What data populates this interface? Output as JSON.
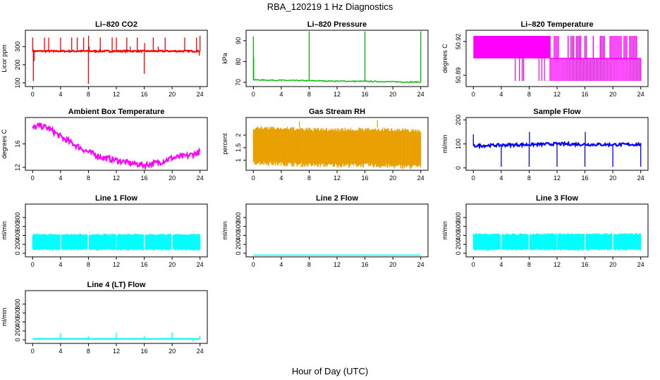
{
  "figure": {
    "title": "RBA_120219  1 Hz Diagnostics",
    "xlabel": "Hour of Day (UTC)"
  },
  "chart_data": [
    {
      "id": "co2",
      "type": "line",
      "title": "Li–820 CO2",
      "ylabel": "Licor ppm",
      "color": "#ff0000",
      "xlim": [
        0,
        24
      ],
      "ylim": [
        80,
        390
      ],
      "xticks": [
        0,
        4,
        8,
        12,
        16,
        20,
        24
      ],
      "yticks": [
        100,
        200,
        300
      ],
      "baseline": 275,
      "noise": 4,
      "spikes": [
        [
          0,
          350
        ],
        [
          0.1,
          110
        ],
        [
          0.2,
          220
        ],
        [
          1.7,
          350
        ],
        [
          2.3,
          350
        ],
        [
          3.0,
          265
        ],
        [
          4.0,
          350
        ],
        [
          5.6,
          350
        ],
        [
          6.4,
          350
        ],
        [
          7.3,
          350
        ],
        [
          8.0,
          95
        ],
        [
          8.02,
          360
        ],
        [
          8.1,
          300
        ],
        [
          9.0,
          265
        ],
        [
          9.7,
          350
        ],
        [
          11.0,
          265
        ],
        [
          11.4,
          350
        ],
        [
          12.0,
          350
        ],
        [
          13.5,
          350
        ],
        [
          14.0,
          300
        ],
        [
          15.0,
          350
        ],
        [
          16.0,
          150
        ],
        [
          16.05,
          320
        ],
        [
          17.3,
          350
        ],
        [
          18.0,
          300
        ],
        [
          19.0,
          350
        ],
        [
          21.0,
          270
        ],
        [
          21.8,
          350
        ],
        [
          23.5,
          350
        ],
        [
          23.9,
          250
        ],
        [
          24.0,
          360
        ]
      ]
    },
    {
      "id": "pressure",
      "type": "line",
      "title": "Li–820 Pressure",
      "ylabel": "kPa",
      "color": "#00bb00",
      "xlim": [
        0,
        24
      ],
      "ylim": [
        68,
        95
      ],
      "xticks": [
        0,
        4,
        8,
        12,
        16,
        20,
        24
      ],
      "yticks": [
        70,
        80,
        90
      ],
      "baseline": [
        [
          0,
          71.2
        ],
        [
          4,
          71
        ],
        [
          8,
          70.8
        ],
        [
          12,
          70.6
        ],
        [
          16,
          70.5
        ],
        [
          20,
          70.3
        ],
        [
          24,
          70.1
        ]
      ],
      "noise": 0.25,
      "spikes": [
        [
          0.0,
          92
        ],
        [
          0.05,
          82
        ],
        [
          8.0,
          94.5
        ],
        [
          16.0,
          94.5
        ],
        [
          24.0,
          94.5
        ]
      ]
    },
    {
      "id": "licor_temp",
      "type": "step",
      "title": "Li–820 Temperature",
      "ylabel": "degrees C",
      "color": "#ff00ff",
      "xlim": [
        0,
        24
      ],
      "ylim": [
        50.88,
        50.93
      ],
      "xticks": [
        0,
        4,
        8,
        12,
        16,
        20,
        24
      ],
      "yticks": [
        50.89,
        50.92
      ],
      "levels": [
        50.905,
        50.925,
        50.885
      ],
      "fill_until": 11.0
    },
    {
      "id": "box_temp",
      "type": "line",
      "title": "Ambient Box Temperature",
      "ylabel": "degrees C",
      "color": "#ff00ff",
      "xlim": [
        0,
        24
      ],
      "ylim": [
        11.5,
        20.5
      ],
      "xticks": [
        0,
        4,
        8,
        12,
        16,
        20,
        24
      ],
      "yticks": [
        12,
        16
      ],
      "baseline": [
        [
          0,
          18.7
        ],
        [
          1,
          19.1
        ],
        [
          2,
          18.8
        ],
        [
          3,
          18.1
        ],
        [
          4,
          17.2
        ],
        [
          6,
          15.9
        ],
        [
          8,
          14.6
        ],
        [
          10,
          13.7
        ],
        [
          12,
          13.2
        ],
        [
          14,
          12.7
        ],
        [
          16,
          12.4
        ],
        [
          18,
          12.8
        ],
        [
          20,
          13.6
        ],
        [
          22,
          13.9
        ],
        [
          24,
          14.6
        ]
      ],
      "noise": 0.5
    },
    {
      "id": "rh",
      "type": "band",
      "title": "Gas Stream RH",
      "ylabel": "percent",
      "color": "#e8a000",
      "xlim": [
        0,
        24
      ],
      "ylim": [
        0.6,
        2.7
      ],
      "xticks": [
        0,
        4,
        8,
        12,
        16,
        20,
        24
      ],
      "yticks": [
        1.0,
        1.5,
        2.0
      ],
      "band": [
        [
          0,
          0.9,
          2.35
        ],
        [
          4,
          0.85,
          2.35
        ],
        [
          8,
          0.8,
          2.3
        ],
        [
          12,
          0.8,
          2.3
        ],
        [
          16,
          0.8,
          2.3
        ],
        [
          20,
          0.75,
          2.3
        ],
        [
          24,
          0.75,
          2.25
        ]
      ],
      "spikes": [
        [
          17.8,
          2.6
        ],
        [
          6.6,
          2.55
        ],
        [
          22.5,
          0.65
        ]
      ]
    },
    {
      "id": "sample_flow",
      "type": "line",
      "title": "Sample Flow",
      "ylabel": "ml/min",
      "color": "#0000ff",
      "xlim": [
        0,
        24
      ],
      "ylim": [
        -10,
        210
      ],
      "xticks": [
        0,
        4,
        8,
        12,
        16,
        20,
        24
      ],
      "yticks": [
        0,
        100,
        200
      ],
      "baseline": [
        [
          0,
          92
        ],
        [
          4,
          95
        ],
        [
          8,
          97
        ],
        [
          12,
          100
        ],
        [
          16,
          98
        ],
        [
          20,
          97
        ],
        [
          24,
          98
        ]
      ],
      "noise": 6,
      "spikes": [
        [
          0,
          140
        ],
        [
          4.0,
          5
        ],
        [
          8.0,
          5
        ],
        [
          8.05,
          150
        ],
        [
          12.0,
          5
        ],
        [
          16.0,
          5
        ],
        [
          16.05,
          150
        ],
        [
          20.0,
          5
        ],
        [
          24.0,
          5
        ]
      ]
    },
    {
      "id": "line1",
      "type": "band",
      "title": "Line 1 Flow",
      "ylabel": "ml/min",
      "color": "#00ffff",
      "xlim": [
        0,
        24
      ],
      "ylim": [
        -80,
        1100
      ],
      "xticks": [
        0,
        4,
        8,
        12,
        16,
        20,
        24
      ],
      "yticks": [
        0,
        200,
        400,
        600,
        800
      ],
      "band": [
        [
          0,
          80,
          440
        ],
        [
          24,
          80,
          440
        ]
      ],
      "gaps": [
        4.0,
        8.0,
        12.0,
        16.0,
        20.0
      ]
    },
    {
      "id": "line2",
      "type": "line",
      "title": "Line 2 Flow",
      "ylabel": "ml/min",
      "color": "#00ffff",
      "xlim": [
        0,
        24
      ],
      "ylim": [
        -80,
        1100
      ],
      "xticks": [
        0,
        4,
        8,
        12,
        16,
        20,
        24
      ],
      "yticks": [
        0,
        200,
        400,
        600,
        800
      ],
      "baseline": -40,
      "noise": 0
    },
    {
      "id": "line3",
      "type": "band",
      "title": "Line 3 Flow",
      "ylabel": "ml/min",
      "color": "#00ffff",
      "xlim": [
        0,
        24
      ],
      "ylim": [
        -80,
        1100
      ],
      "xticks": [
        0,
        4,
        8,
        12,
        16,
        20,
        24
      ],
      "yticks": [
        0,
        200,
        400,
        600,
        800
      ],
      "band": [
        [
          0,
          80,
          450
        ],
        [
          24,
          80,
          450
        ]
      ],
      "gaps": [
        4.0,
        8.0,
        12.0,
        16.0,
        20.0
      ]
    },
    {
      "id": "line4",
      "type": "line",
      "title": "Line 4 (LT) Flow",
      "ylabel": "ml/min",
      "color": "#00ffff",
      "xlim": [
        0,
        24
      ],
      "ylim": [
        -80,
        1100
      ],
      "xticks": [
        0,
        4,
        8,
        12,
        16,
        20,
        24
      ],
      "yticks": [
        0,
        200,
        400,
        600,
        800
      ],
      "baseline": 20,
      "noise": 3,
      "spikes": [
        [
          4.0,
          150
        ],
        [
          8.0,
          80
        ],
        [
          12.0,
          160
        ],
        [
          16.0,
          80
        ],
        [
          20.0,
          160
        ],
        [
          23.0,
          -40
        ],
        [
          24.0,
          90
        ]
      ]
    }
  ]
}
